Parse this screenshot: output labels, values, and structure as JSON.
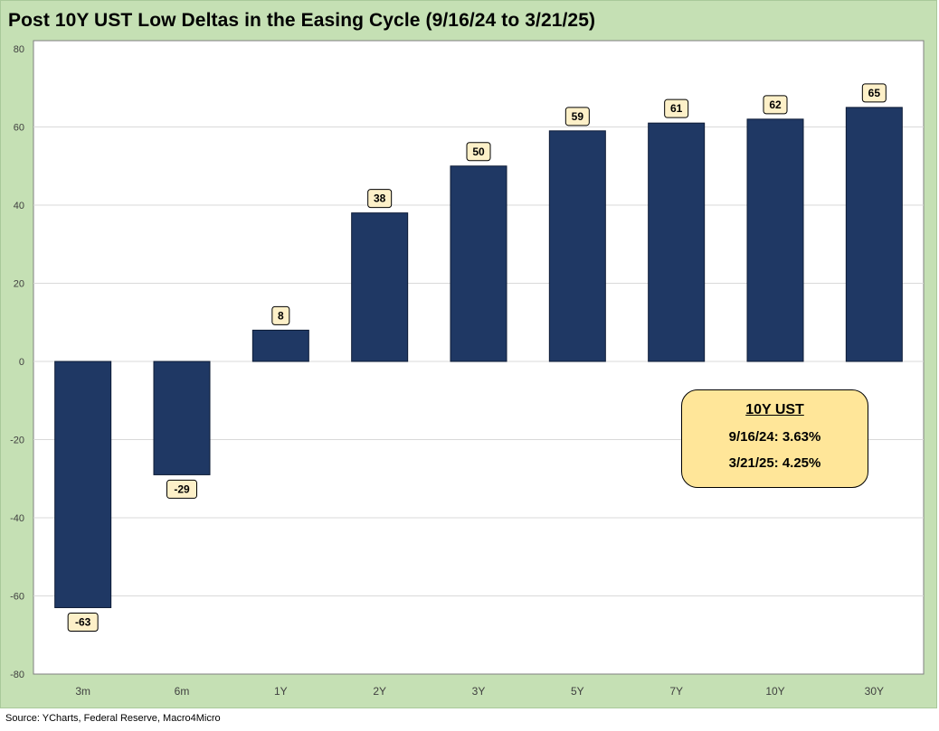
{
  "chart_data": {
    "type": "bar",
    "title": "Post 10Y UST Low Deltas in the Easing Cycle (9/16/24 to 3/21/25)",
    "categories": [
      "3m",
      "6m",
      "1Y",
      "2Y",
      "3Y",
      "5Y",
      "7Y",
      "10Y",
      "30Y"
    ],
    "values": [
      -63,
      -29,
      8,
      38,
      50,
      59,
      61,
      62,
      65
    ],
    "ylim": [
      -80,
      80
    ],
    "yticks": [
      80,
      60,
      40,
      20,
      0,
      -20,
      -40,
      -60,
      -80
    ],
    "grid": true,
    "bar_color": "#1f3864",
    "label_fill": "#fdf0c8",
    "annotation": {
      "title": "10Y UST",
      "lines": [
        "9/16/24: 3.63%",
        "3/21/25: 4.25%"
      ],
      "fill": "#ffe699"
    }
  },
  "source": "Source: YCharts, Federal Reserve, Macro4Micro",
  "colors": {
    "frame_bg": "#c5e0b4",
    "plot_bg": "#ffffff",
    "gridline": "#d9d9d9"
  }
}
